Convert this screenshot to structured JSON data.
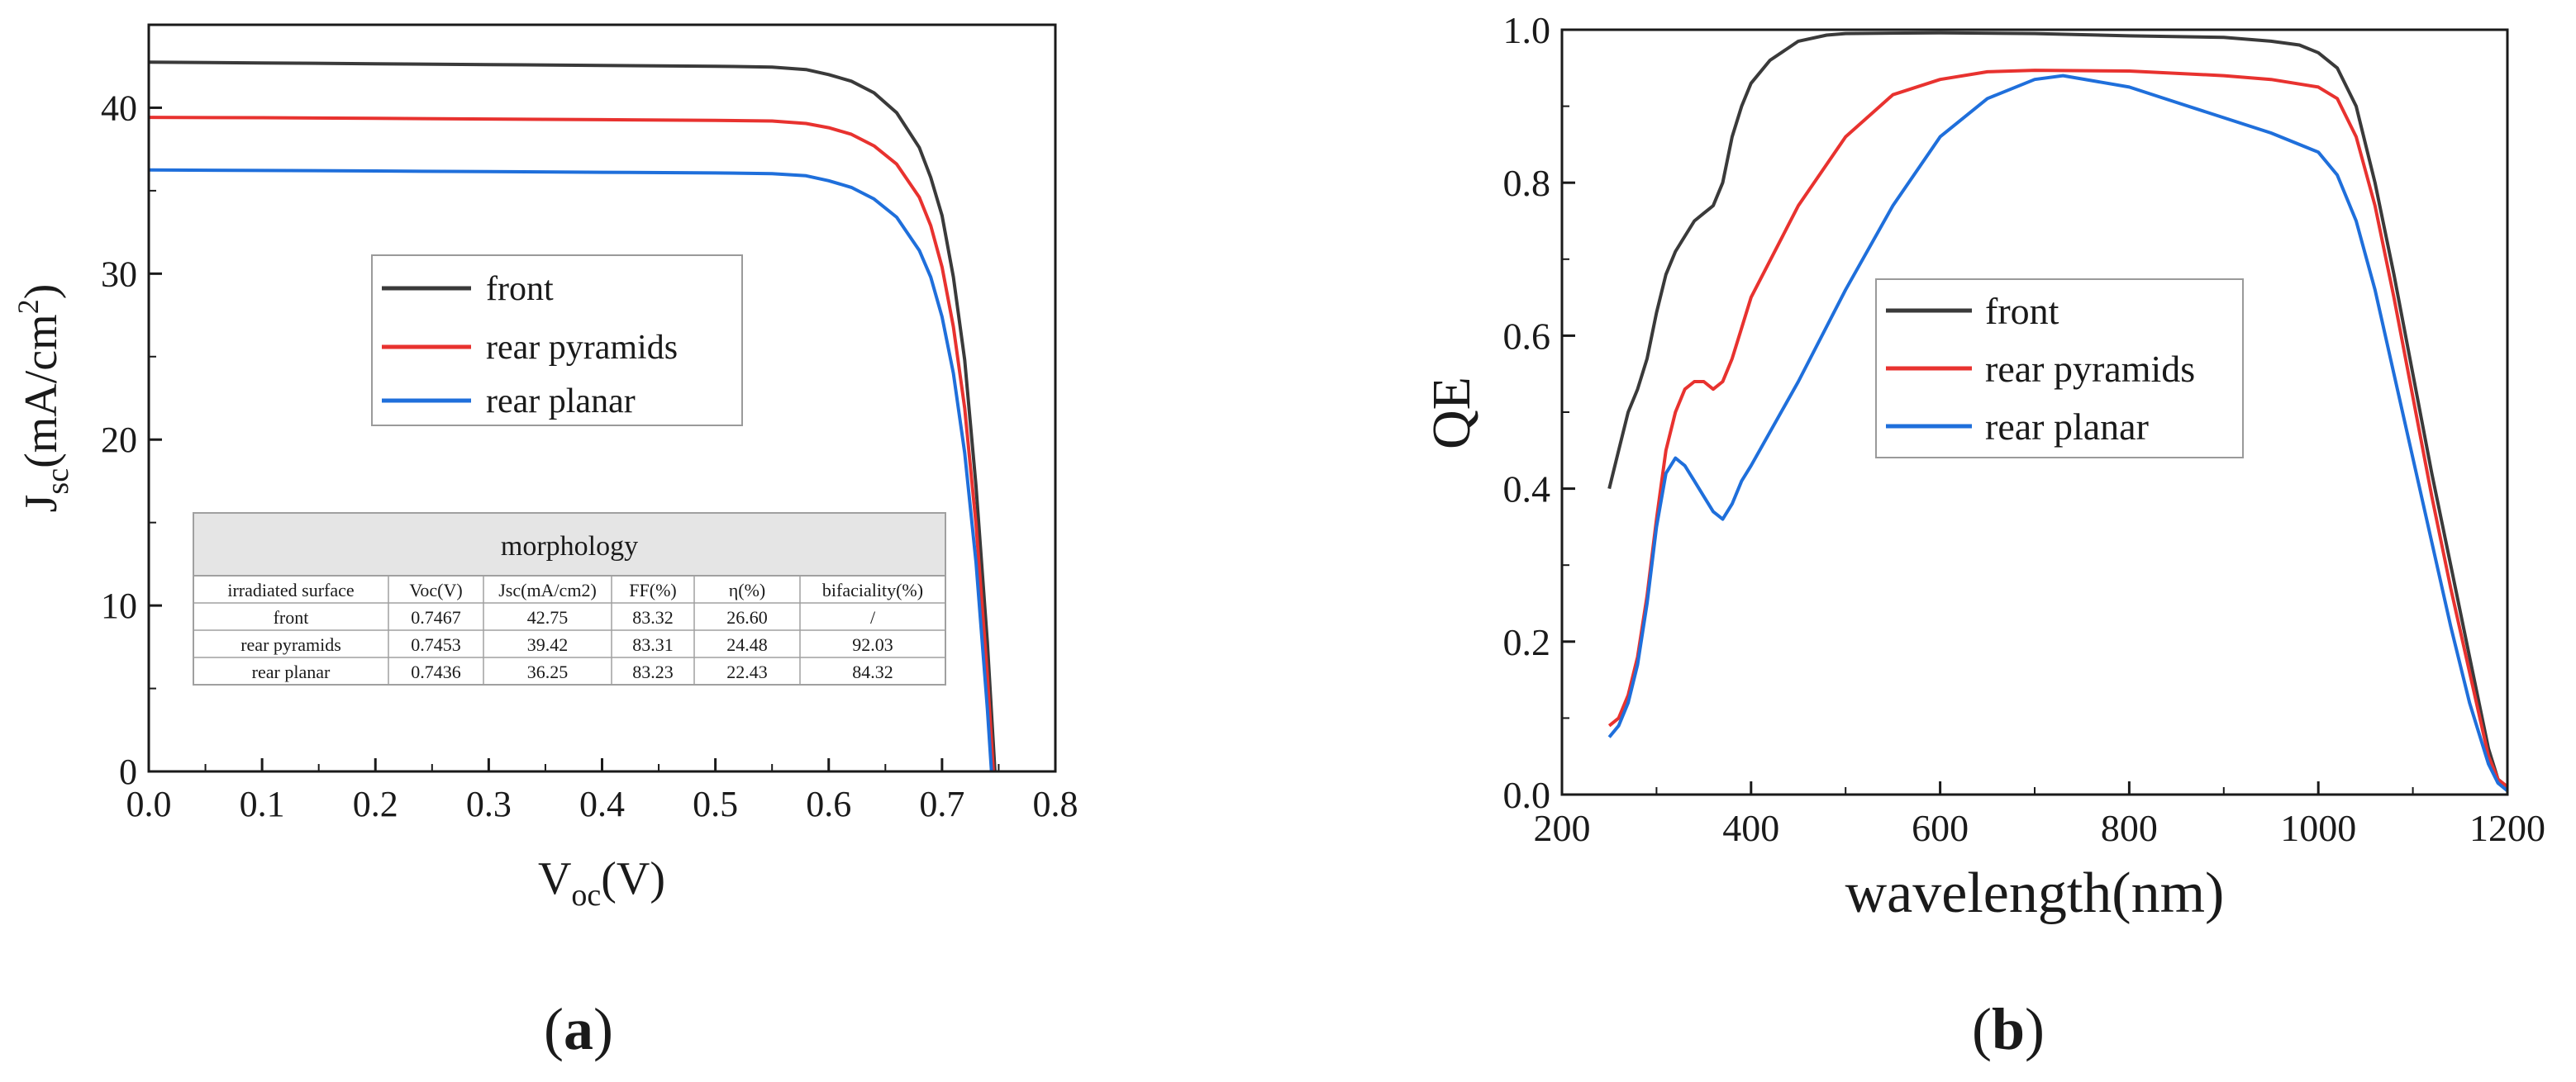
{
  "chart_data": [
    {
      "id": "a",
      "type": "line",
      "panel_label": "a",
      "xlabel_main": "V",
      "xlabel_sub": "oc",
      "xlabel_tail": "(V)",
      "ylabel_main": "J",
      "ylabel_sub": "sc",
      "ylabel_tail": "(mA/cm",
      "ylabel_sup": "2",
      "ylabel_end": ")",
      "xlim": [
        0.0,
        0.8
      ],
      "ylim": [
        0,
        45
      ],
      "xticks": [
        "0.0",
        "0.1",
        "0.2",
        "0.3",
        "0.4",
        "0.5",
        "0.6",
        "0.7",
        "0.8"
      ],
      "yticks": [
        "0",
        "10",
        "20",
        "30",
        "40"
      ],
      "legend_position": "center",
      "series": [
        {
          "name": "front",
          "color": "#3a3a3a",
          "points": [
            [
              0,
              42.75
            ],
            [
              0.1,
              42.7
            ],
            [
              0.2,
              42.65
            ],
            [
              0.3,
              42.6
            ],
            [
              0.4,
              42.55
            ],
            [
              0.5,
              42.5
            ],
            [
              0.55,
              42.45
            ],
            [
              0.58,
              42.3
            ],
            [
              0.6,
              42.0
            ],
            [
              0.62,
              41.6
            ],
            [
              0.64,
              40.9
            ],
            [
              0.66,
              39.7
            ],
            [
              0.68,
              37.6
            ],
            [
              0.69,
              35.8
            ],
            [
              0.7,
              33.5
            ],
            [
              0.71,
              29.8
            ],
            [
              0.72,
              24.8
            ],
            [
              0.73,
              17.2
            ],
            [
              0.74,
              7.8
            ],
            [
              0.7467,
              0
            ]
          ]
        },
        {
          "name": "rear pyramids",
          "color": "#e8322f",
          "points": [
            [
              0,
              39.42
            ],
            [
              0.1,
              39.4
            ],
            [
              0.2,
              39.36
            ],
            [
              0.3,
              39.32
            ],
            [
              0.4,
              39.28
            ],
            [
              0.5,
              39.24
            ],
            [
              0.55,
              39.2
            ],
            [
              0.58,
              39.05
            ],
            [
              0.6,
              38.8
            ],
            [
              0.62,
              38.4
            ],
            [
              0.64,
              37.7
            ],
            [
              0.66,
              36.6
            ],
            [
              0.68,
              34.6
            ],
            [
              0.69,
              32.9
            ],
            [
              0.7,
              30.4
            ],
            [
              0.71,
              26.8
            ],
            [
              0.72,
              21.9
            ],
            [
              0.73,
              14.9
            ],
            [
              0.74,
              5.8
            ],
            [
              0.7453,
              0
            ]
          ]
        },
        {
          "name": "rear planar",
          "color": "#1f6fdb",
          "points": [
            [
              0,
              36.25
            ],
            [
              0.1,
              36.22
            ],
            [
              0.2,
              36.19
            ],
            [
              0.3,
              36.15
            ],
            [
              0.4,
              36.11
            ],
            [
              0.5,
              36.07
            ],
            [
              0.55,
              36.03
            ],
            [
              0.58,
              35.9
            ],
            [
              0.6,
              35.6
            ],
            [
              0.62,
              35.2
            ],
            [
              0.64,
              34.5
            ],
            [
              0.66,
              33.4
            ],
            [
              0.68,
              31.4
            ],
            [
              0.69,
              29.8
            ],
            [
              0.7,
              27.4
            ],
            [
              0.71,
              24.0
            ],
            [
              0.72,
              19.2
            ],
            [
              0.73,
              12.6
            ],
            [
              0.74,
              3.8
            ],
            [
              0.7436,
              0
            ]
          ]
        }
      ],
      "table": {
        "title": "morphology",
        "headers": [
          "irradiated surface",
          "Voc(V)",
          "Jsc(mA/cm2)",
          "FF(%)",
          "η(%)",
          "bifaciality(%)"
        ],
        "rows": [
          [
            "front",
            "0.7467",
            "42.75",
            "83.32",
            "26.60",
            "/"
          ],
          [
            "rear pyramids",
            "0.7453",
            "39.42",
            "83.31",
            "24.48",
            "92.03"
          ],
          [
            "rear planar",
            "0.7436",
            "36.25",
            "83.23",
            "22.43",
            "84.32"
          ]
        ]
      }
    },
    {
      "id": "b",
      "type": "line",
      "panel_label": "b",
      "xlabel": "wavelength(nm)",
      "ylabel": "QE",
      "xlim": [
        200,
        1200
      ],
      "ylim": [
        0.0,
        1.0
      ],
      "xticks": [
        "200",
        "400",
        "600",
        "800",
        "1000",
        "1200"
      ],
      "yticks": [
        "0.0",
        "0.2",
        "0.4",
        "0.6",
        "0.8",
        "1.0"
      ],
      "legend_position": "center",
      "series": [
        {
          "name": "front",
          "color": "#3a3a3a",
          "points": [
            [
              250,
              0.4
            ],
            [
              260,
              0.45
            ],
            [
              270,
              0.5
            ],
            [
              280,
              0.53
            ],
            [
              290,
              0.57
            ],
            [
              300,
              0.63
            ],
            [
              310,
              0.68
            ],
            [
              320,
              0.71
            ],
            [
              330,
              0.73
            ],
            [
              340,
              0.75
            ],
            [
              350,
              0.76
            ],
            [
              360,
              0.77
            ],
            [
              370,
              0.8
            ],
            [
              380,
              0.86
            ],
            [
              390,
              0.9
            ],
            [
              400,
              0.93
            ],
            [
              420,
              0.96
            ],
            [
              450,
              0.985
            ],
            [
              480,
              0.993
            ],
            [
              500,
              0.995
            ],
            [
              600,
              0.996
            ],
            [
              700,
              0.995
            ],
            [
              800,
              0.992
            ],
            [
              900,
              0.99
            ],
            [
              950,
              0.985
            ],
            [
              980,
              0.98
            ],
            [
              1000,
              0.97
            ],
            [
              1020,
              0.95
            ],
            [
              1040,
              0.9
            ],
            [
              1060,
              0.8
            ],
            [
              1080,
              0.68
            ],
            [
              1100,
              0.55
            ],
            [
              1120,
              0.42
            ],
            [
              1140,
              0.3
            ],
            [
              1160,
              0.18
            ],
            [
              1180,
              0.06
            ],
            [
              1190,
              0.02
            ],
            [
              1200,
              0.01
            ]
          ]
        },
        {
          "name": "rear pyramids",
          "color": "#e8322f",
          "points": [
            [
              250,
              0.09
            ],
            [
              260,
              0.1
            ],
            [
              270,
              0.13
            ],
            [
              280,
              0.18
            ],
            [
              290,
              0.26
            ],
            [
              300,
              0.36
            ],
            [
              310,
              0.45
            ],
            [
              320,
              0.5
            ],
            [
              330,
              0.53
            ],
            [
              340,
              0.54
            ],
            [
              350,
              0.54
            ],
            [
              360,
              0.53
            ],
            [
              370,
              0.54
            ],
            [
              380,
              0.57
            ],
            [
              390,
              0.61
            ],
            [
              400,
              0.65
            ],
            [
              450,
              0.77
            ],
            [
              500,
              0.86
            ],
            [
              550,
              0.915
            ],
            [
              600,
              0.935
            ],
            [
              650,
              0.945
            ],
            [
              700,
              0.947
            ],
            [
              800,
              0.946
            ],
            [
              900,
              0.94
            ],
            [
              950,
              0.935
            ],
            [
              1000,
              0.925
            ],
            [
              1020,
              0.91
            ],
            [
              1040,
              0.86
            ],
            [
              1060,
              0.77
            ],
            [
              1080,
              0.65
            ],
            [
              1100,
              0.52
            ],
            [
              1120,
              0.39
            ],
            [
              1140,
              0.27
            ],
            [
              1160,
              0.16
            ],
            [
              1180,
              0.05
            ],
            [
              1190,
              0.02
            ],
            [
              1200,
              0.01
            ]
          ]
        },
        {
          "name": "rear planar",
          "color": "#1f6fdb",
          "points": [
            [
              250,
              0.075
            ],
            [
              260,
              0.09
            ],
            [
              270,
              0.12
            ],
            [
              280,
              0.17
            ],
            [
              290,
              0.25
            ],
            [
              300,
              0.35
            ],
            [
              310,
              0.42
            ],
            [
              320,
              0.44
            ],
            [
              330,
              0.43
            ],
            [
              340,
              0.41
            ],
            [
              350,
              0.39
            ],
            [
              360,
              0.37
            ],
            [
              370,
              0.36
            ],
            [
              380,
              0.38
            ],
            [
              390,
              0.41
            ],
            [
              400,
              0.43
            ],
            [
              450,
              0.54
            ],
            [
              500,
              0.66
            ],
            [
              550,
              0.77
            ],
            [
              600,
              0.86
            ],
            [
              650,
              0.91
            ],
            [
              700,
              0.935
            ],
            [
              730,
              0.94
            ],
            [
              800,
              0.925
            ],
            [
              850,
              0.905
            ],
            [
              900,
              0.885
            ],
            [
              950,
              0.865
            ],
            [
              1000,
              0.84
            ],
            [
              1020,
              0.81
            ],
            [
              1040,
              0.75
            ],
            [
              1060,
              0.66
            ],
            [
              1080,
              0.55
            ],
            [
              1100,
              0.44
            ],
            [
              1120,
              0.33
            ],
            [
              1140,
              0.22
            ],
            [
              1160,
              0.12
            ],
            [
              1180,
              0.04
            ],
            [
              1190,
              0.015
            ],
            [
              1200,
              0.005
            ]
          ]
        }
      ]
    }
  ]
}
